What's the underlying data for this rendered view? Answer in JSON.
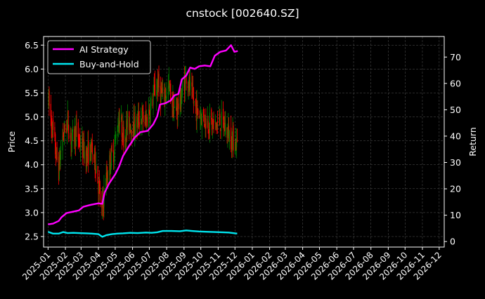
{
  "chart_data": {
    "type": "line",
    "title": "cnstock [002640.SZ]",
    "ylabel_left": "Price",
    "ylabel_right": "Return",
    "background": "#000000",
    "grid": true,
    "legend_placement": "top-left",
    "x_tick_labels": [
      "2025-01",
      "2025-02",
      "2025-03",
      "2025-04",
      "2025-05",
      "2025-06",
      "2025-07",
      "2025-08",
      "2025-09",
      "2025-10",
      "2025-11",
      "2025-12",
      "2026-01",
      "2026-02",
      "2026-03",
      "2026-04",
      "2026-05",
      "2026-06",
      "2026-07",
      "2026-08",
      "2026-09",
      "2026-10",
      "2026-11",
      "2026-12"
    ],
    "x_range": [
      "2024-12-24",
      "2026-12-10"
    ],
    "ylim_left": [
      2.28,
      6.68
    ],
    "y_ticks_left": [
      "2.5",
      "3.0",
      "3.5",
      "4.0",
      "4.5",
      "5.0",
      "5.5",
      "6.0",
      "6.5"
    ],
    "ylim_right": [
      -2.1,
      77.8
    ],
    "y_ticks_right": [
      "0",
      "10",
      "20",
      "30",
      "40",
      "50",
      "60",
      "70"
    ],
    "price_candles": {
      "up_color": "#008000",
      "down_color": "#ff0000",
      "anchors": [
        [
          "2025-01-02",
          5.3
        ],
        [
          "2025-01-08",
          4.8
        ],
        [
          "2025-01-14",
          4.3
        ],
        [
          "2025-01-20",
          3.9
        ],
        [
          "2025-01-27",
          4.6
        ],
        [
          "2025-02-05",
          4.9
        ],
        [
          "2025-02-12",
          4.5
        ],
        [
          "2025-02-20",
          4.7
        ],
        [
          "2025-03-01",
          4.4
        ],
        [
          "2025-03-10",
          4.2
        ],
        [
          "2025-03-20",
          4.3
        ],
        [
          "2025-03-28",
          4.0
        ],
        [
          "2025-04-07",
          3.0
        ],
        [
          "2025-04-12",
          3.5
        ],
        [
          "2025-04-20",
          4.0
        ],
        [
          "2025-04-28",
          4.3
        ],
        [
          "2025-05-08",
          5.0
        ],
        [
          "2025-05-16",
          4.6
        ],
        [
          "2025-05-25",
          4.9
        ],
        [
          "2025-06-05",
          4.8
        ],
        [
          "2025-06-15",
          5.0
        ],
        [
          "2025-06-25",
          4.9
        ],
        [
          "2025-07-05",
          5.3
        ],
        [
          "2025-07-15",
          5.7
        ],
        [
          "2025-07-25",
          5.4
        ],
        [
          "2025-08-05",
          5.6
        ],
        [
          "2025-08-15",
          5.1
        ],
        [
          "2025-08-25",
          5.3
        ],
        [
          "2025-09-05",
          5.9
        ],
        [
          "2025-09-15",
          5.4
        ],
        [
          "2025-09-25",
          5.1
        ],
        [
          "2025-10-05",
          5.0
        ],
        [
          "2025-10-15",
          4.9
        ],
        [
          "2025-10-25",
          4.8
        ],
        [
          "2025-11-05",
          4.9
        ],
        [
          "2025-11-15",
          4.75
        ],
        [
          "2025-11-25",
          4.55
        ],
        [
          "2025-12-05",
          4.45
        ]
      ]
    },
    "series": [
      {
        "name": "AI Strategy",
        "color": "#ff00ff",
        "axis": "right",
        "points": [
          [
            "2025-01-01",
            6.5
          ],
          [
            "2025-01-10",
            6.8
          ],
          [
            "2025-01-20",
            7.8
          ],
          [
            "2025-01-25",
            9.2
          ],
          [
            "2025-02-03",
            10.8
          ],
          [
            "2025-02-12",
            11.2
          ],
          [
            "2025-02-25",
            11.8
          ],
          [
            "2025-03-05",
            13.2
          ],
          [
            "2025-03-20",
            14.0
          ],
          [
            "2025-04-01",
            14.5
          ],
          [
            "2025-04-08",
            14.3
          ],
          [
            "2025-04-12",
            18.5
          ],
          [
            "2025-04-20",
            22.0
          ],
          [
            "2025-05-01",
            25.5
          ],
          [
            "2025-05-08",
            28.5
          ],
          [
            "2025-05-15",
            32.5
          ],
          [
            "2025-05-25",
            36.0
          ],
          [
            "2025-06-05",
            39.5
          ],
          [
            "2025-06-15",
            41.5
          ],
          [
            "2025-06-28",
            42.0
          ],
          [
            "2025-07-08",
            44.5
          ],
          [
            "2025-07-15",
            47.5
          ],
          [
            "2025-07-20",
            52.0
          ],
          [
            "2025-07-30",
            52.5
          ],
          [
            "2025-08-08",
            53.5
          ],
          [
            "2025-08-15",
            55.5
          ],
          [
            "2025-08-22",
            56.0
          ],
          [
            "2025-08-28",
            61.5
          ],
          [
            "2025-09-05",
            63.0
          ],
          [
            "2025-09-12",
            66.0
          ],
          [
            "2025-09-20",
            65.5
          ],
          [
            "2025-09-28",
            66.5
          ],
          [
            "2025-10-08",
            66.8
          ],
          [
            "2025-10-18",
            66.5
          ],
          [
            "2025-10-26",
            70.5
          ],
          [
            "2025-11-05",
            72.0
          ],
          [
            "2025-11-15",
            72.5
          ],
          [
            "2025-11-24",
            74.5
          ],
          [
            "2025-11-30",
            72.0
          ],
          [
            "2025-12-06",
            72.3
          ]
        ]
      },
      {
        "name": "Buy-and-Hold",
        "color": "#00e5ee",
        "axis": "right",
        "points": [
          [
            "2025-01-01",
            3.7
          ],
          [
            "2025-01-10",
            3.0
          ],
          [
            "2025-01-20",
            3.0
          ],
          [
            "2025-01-28",
            3.6
          ],
          [
            "2025-02-05",
            3.2
          ],
          [
            "2025-02-15",
            3.3
          ],
          [
            "2025-02-25",
            3.2
          ],
          [
            "2025-03-10",
            3.1
          ],
          [
            "2025-03-20",
            3.0
          ],
          [
            "2025-04-01",
            2.8
          ],
          [
            "2025-04-08",
            1.8
          ],
          [
            "2025-04-15",
            2.4
          ],
          [
            "2025-04-25",
            2.8
          ],
          [
            "2025-05-05",
            3.0
          ],
          [
            "2025-05-15",
            3.1
          ],
          [
            "2025-05-28",
            3.3
          ],
          [
            "2025-06-10",
            3.2
          ],
          [
            "2025-06-25",
            3.4
          ],
          [
            "2025-07-05",
            3.3
          ],
          [
            "2025-07-15",
            3.5
          ],
          [
            "2025-07-25",
            4.0
          ],
          [
            "2025-08-10",
            4.0
          ],
          [
            "2025-08-25",
            3.9
          ],
          [
            "2025-09-05",
            4.2
          ],
          [
            "2025-09-15",
            4.0
          ],
          [
            "2025-09-28",
            3.8
          ],
          [
            "2025-10-10",
            3.7
          ],
          [
            "2025-10-25",
            3.6
          ],
          [
            "2025-11-08",
            3.5
          ],
          [
            "2025-11-20",
            3.4
          ],
          [
            "2025-12-05",
            3.0
          ]
        ]
      }
    ]
  }
}
